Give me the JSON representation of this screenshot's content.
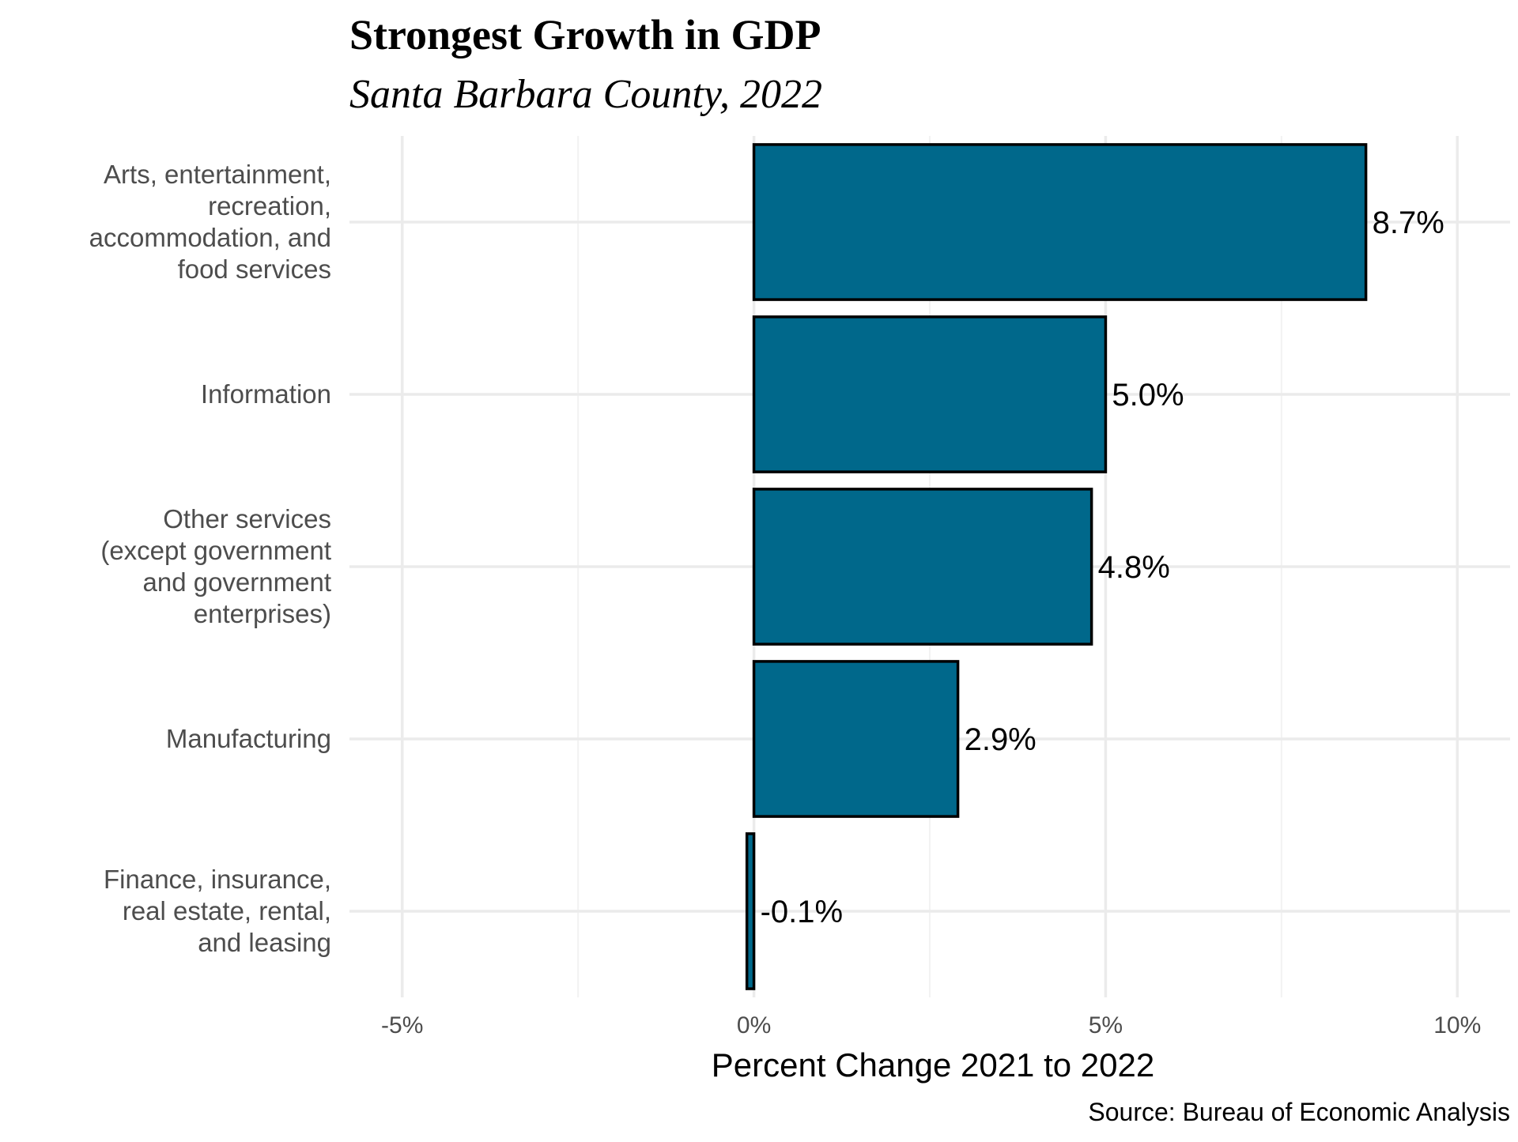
{
  "chart_data": {
    "type": "bar",
    "orientation": "horizontal",
    "title": "Strongest Growth in GDP",
    "subtitle": "Santa Barbara County, 2022",
    "xlabel": "Percent Change 2021 to 2022",
    "ylabel": "",
    "caption": "Source: Bureau of Economic Analysis",
    "categories": [
      [
        "Arts, entertainment,",
        "recreation,",
        "accommodation, and",
        "food services"
      ],
      [
        "Information"
      ],
      [
        "Other services",
        "(except government",
        "and government",
        "enterprises)"
      ],
      [
        "Manufacturing"
      ],
      [
        "Finance, insurance,",
        "real estate, rental,",
        "and leasing"
      ]
    ],
    "values": [
      8.7,
      5.0,
      4.8,
      2.9,
      -0.1
    ],
    "value_labels": [
      "8.7%",
      "5.0%",
      "4.8%",
      "2.9%",
      "-0.1%"
    ],
    "xlim": [
      -5.75,
      10.75
    ],
    "xticks": [
      -5,
      0,
      5,
      10
    ],
    "xtick_labels": [
      "-5%",
      "0%",
      "5%",
      "10%"
    ],
    "grid": true,
    "legend": "none",
    "bar_color": "#00688b",
    "bar_border_color": "#000000"
  }
}
